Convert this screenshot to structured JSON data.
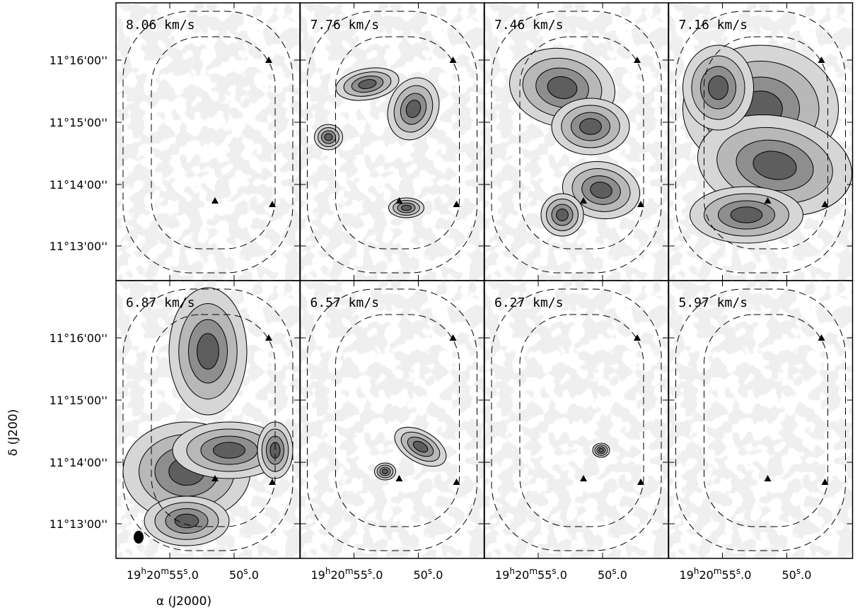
{
  "chart_data": {
    "type": "channel_map",
    "layout": {
      "rows": 2,
      "cols": 4
    },
    "xlabel": "α (J2000)",
    "ylabel": "δ (J200)",
    "x_tick_labels": [
      {
        "h": "19",
        "hs": "h",
        "m": "20",
        "ms": "m",
        "s": "55",
        "ss": "s",
        "frac": ".0"
      },
      {
        "h": "",
        "hs": "",
        "m": "",
        "ms": "",
        "s": "50",
        "ss": "s",
        "frac": ".0"
      }
    ],
    "y_tick_labels": [
      "11°16'00''",
      "11°15'00''",
      "11°14'00''",
      "11°13'00''"
    ],
    "panels": [
      {
        "velocity_label": "8.06 km/s",
        "velocity": 8.06,
        "emission": "weak"
      },
      {
        "velocity_label": "7.76 km/s",
        "velocity": 7.76,
        "emission": "moderate"
      },
      {
        "velocity_label": "7.46 km/s",
        "velocity": 7.46,
        "emission": "strong"
      },
      {
        "velocity_label": "7.16 km/s",
        "velocity": 7.16,
        "emission": "peak"
      },
      {
        "velocity_label": "6.87 km/s",
        "velocity": 6.87,
        "emission": "strong"
      },
      {
        "velocity_label": "6.57 km/s",
        "velocity": 6.57,
        "emission": "moderate"
      },
      {
        "velocity_label": "6.27 km/s",
        "velocity": 6.27,
        "emission": "weak"
      },
      {
        "velocity_label": "5.97 km/s",
        "velocity": 5.97,
        "emission": "weak"
      }
    ],
    "markers": "black triangles marking source positions",
    "beam": "filled black ellipse in lower-left of 6.87 km/s panel",
    "colormap": "grayscale",
    "dashed_contours": "primary-beam response levels"
  }
}
